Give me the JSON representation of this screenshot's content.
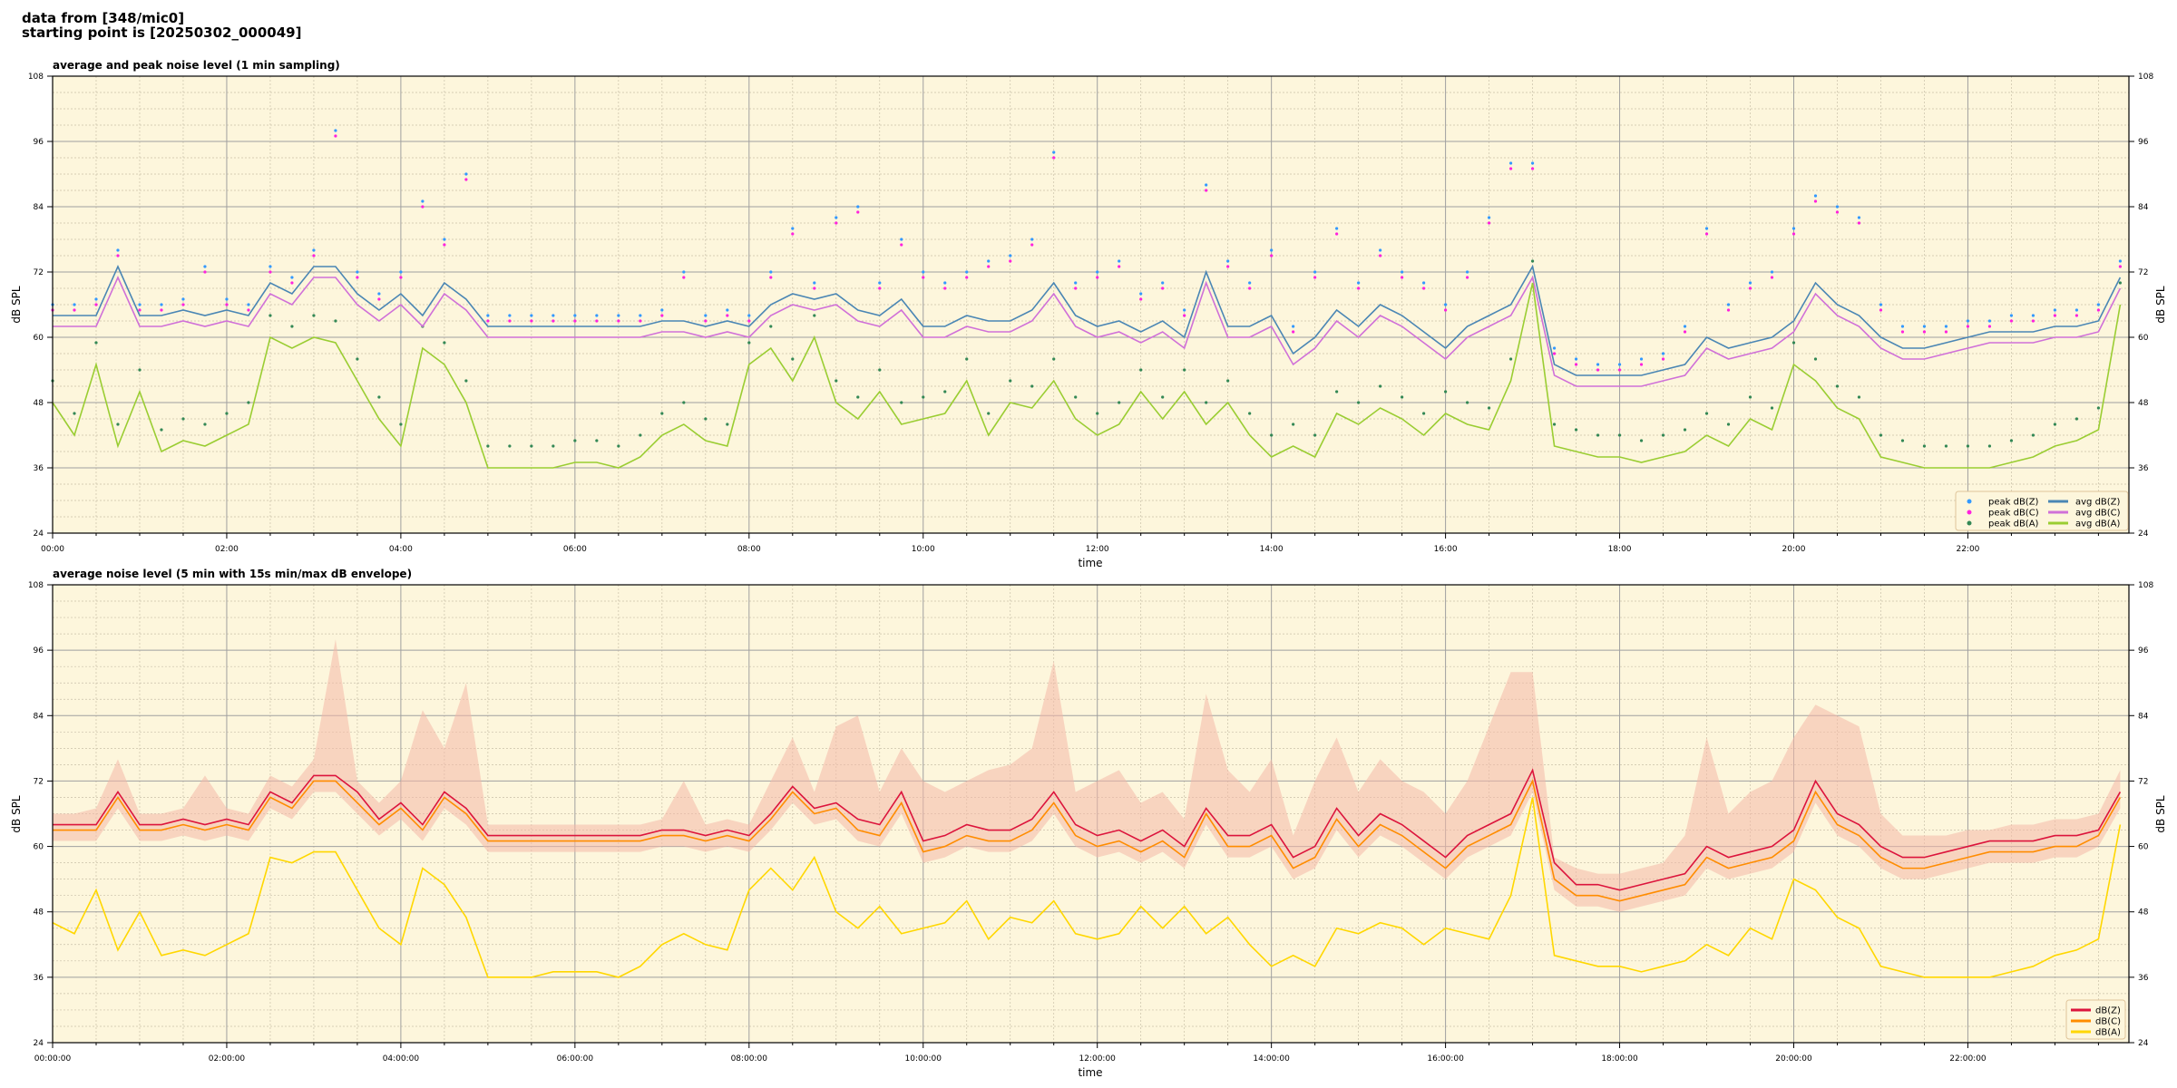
{
  "header": {
    "line1": "data from [348/mic0]",
    "line2": "starting point is [20250302_000049]"
  },
  "chart_data": [
    {
      "type": "line",
      "title": "average and peak noise level (1 min sampling)",
      "xlabel": "time",
      "ylabel": "dB SPL",
      "ylim": [
        24,
        108
      ],
      "yticks": [
        24,
        36,
        48,
        60,
        72,
        84,
        96,
        108
      ],
      "xlim_hours": [
        0,
        23.85
      ],
      "xtick_labels": [
        "00:00",
        "02:00",
        "04:00",
        "06:00",
        "08:00",
        "10:00",
        "12:00",
        "14:00",
        "16:00",
        "18:00",
        "20:00",
        "22:00"
      ],
      "x_step_minutes": 15,
      "background": "#fdf6dc",
      "grid": true,
      "legend_position": "lower-right",
      "legend_columns": 2,
      "series": [
        {
          "name": "peak dB(Z)",
          "kind": "scatter",
          "color": "#3399ff",
          "values": [
            66,
            66,
            67,
            76,
            66,
            66,
            67,
            73,
            67,
            66,
            73,
            71,
            76,
            98,
            72,
            68,
            72,
            85,
            78,
            90,
            64,
            64,
            64,
            64,
            64,
            64,
            64,
            64,
            65,
            72,
            64,
            65,
            64,
            72,
            80,
            70,
            82,
            84,
            70,
            78,
            72,
            70,
            72,
            74,
            75,
            78,
            94,
            70,
            72,
            74,
            68,
            70,
            65,
            88,
            74,
            70,
            76,
            62,
            72,
            80,
            70,
            76,
            72,
            70,
            66,
            72,
            82,
            92,
            92,
            58,
            56,
            55,
            55,
            56,
            57,
            62,
            80,
            66,
            70,
            72,
            80,
            86,
            84,
            82,
            66,
            62,
            62,
            62,
            63,
            63,
            64,
            64,
            65,
            65,
            66,
            74
          ]
        },
        {
          "name": "peak dB(C)",
          "kind": "scatter",
          "color": "#ff22dd",
          "values": [
            65,
            65,
            66,
            75,
            65,
            65,
            66,
            72,
            66,
            65,
            72,
            70,
            75,
            97,
            71,
            67,
            71,
            84,
            77,
            89,
            63,
            63,
            63,
            63,
            63,
            63,
            63,
            63,
            64,
            71,
            63,
            64,
            63,
            71,
            79,
            69,
            81,
            83,
            69,
            77,
            71,
            69,
            71,
            73,
            74,
            77,
            93,
            69,
            71,
            73,
            67,
            69,
            64,
            87,
            73,
            69,
            75,
            61,
            71,
            79,
            69,
            75,
            71,
            69,
            65,
            71,
            81,
            91,
            91,
            57,
            55,
            54,
            54,
            55,
            56,
            61,
            79,
            65,
            69,
            71,
            79,
            85,
            83,
            81,
            65,
            61,
            61,
            61,
            62,
            62,
            63,
            63,
            64,
            64,
            65,
            73
          ]
        },
        {
          "name": "peak dB(A)",
          "kind": "scatter",
          "color": "#338855",
          "values": [
            52,
            46,
            59,
            44,
            54,
            43,
            45,
            44,
            46,
            48,
            64,
            62,
            64,
            63,
            56,
            49,
            44,
            62,
            59,
            52,
            40,
            40,
            40,
            40,
            41,
            41,
            40,
            42,
            46,
            48,
            45,
            44,
            59,
            62,
            56,
            64,
            52,
            49,
            54,
            48,
            49,
            50,
            56,
            46,
            52,
            51,
            56,
            49,
            46,
            48,
            54,
            49,
            54,
            48,
            52,
            46,
            42,
            44,
            42,
            50,
            48,
            51,
            49,
            46,
            50,
            48,
            47,
            56,
            74,
            44,
            43,
            42,
            42,
            41,
            42,
            43,
            46,
            44,
            49,
            47,
            59,
            56,
            51,
            49,
            42,
            41,
            40,
            40,
            40,
            40,
            41,
            42,
            44,
            45,
            47,
            70
          ]
        },
        {
          "name": "avg dB(Z)",
          "kind": "line",
          "color": "#4a86b4",
          "values": [
            64,
            64,
            64,
            73,
            64,
            64,
            65,
            64,
            65,
            64,
            70,
            68,
            73,
            73,
            68,
            65,
            68,
            64,
            70,
            67,
            62,
            62,
            62,
            62,
            62,
            62,
            62,
            62,
            63,
            63,
            62,
            63,
            62,
            66,
            68,
            67,
            68,
            65,
            64,
            67,
            62,
            62,
            64,
            63,
            63,
            65,
            70,
            64,
            62,
            63,
            61,
            63,
            60,
            72,
            62,
            62,
            64,
            57,
            60,
            65,
            62,
            66,
            64,
            61,
            58,
            62,
            64,
            66,
            73,
            55,
            53,
            53,
            53,
            53,
            54,
            55,
            60,
            58,
            59,
            60,
            63,
            70,
            66,
            64,
            60,
            58,
            58,
            59,
            60,
            61,
            61,
            61,
            62,
            62,
            63,
            71
          ]
        },
        {
          "name": "avg dB(C)",
          "kind": "line",
          "color": "#d070d8",
          "values": [
            62,
            62,
            62,
            71,
            62,
            62,
            63,
            62,
            63,
            62,
            68,
            66,
            71,
            71,
            66,
            63,
            66,
            62,
            68,
            65,
            60,
            60,
            60,
            60,
            60,
            60,
            60,
            60,
            61,
            61,
            60,
            61,
            60,
            64,
            66,
            65,
            66,
            63,
            62,
            65,
            60,
            60,
            62,
            61,
            61,
            63,
            68,
            62,
            60,
            61,
            59,
            61,
            58,
            70,
            60,
            60,
            62,
            55,
            58,
            63,
            60,
            64,
            62,
            59,
            56,
            60,
            62,
            64,
            71,
            53,
            51,
            51,
            51,
            51,
            52,
            53,
            58,
            56,
            57,
            58,
            61,
            68,
            64,
            62,
            58,
            56,
            56,
            57,
            58,
            59,
            59,
            59,
            60,
            60,
            61,
            69
          ]
        },
        {
          "name": "avg dB(A)",
          "kind": "line",
          "color": "#9acd32",
          "values": [
            48,
            42,
            55,
            40,
            50,
            39,
            41,
            40,
            42,
            44,
            60,
            58,
            60,
            59,
            52,
            45,
            40,
            58,
            55,
            48,
            36,
            36,
            36,
            36,
            37,
            37,
            36,
            38,
            42,
            44,
            41,
            40,
            55,
            58,
            52,
            60,
            48,
            45,
            50,
            44,
            45,
            46,
            52,
            42,
            48,
            47,
            52,
            45,
            42,
            44,
            50,
            45,
            50,
            44,
            48,
            42,
            38,
            40,
            38,
            46,
            44,
            47,
            45,
            42,
            46,
            44,
            43,
            52,
            70,
            40,
            39,
            38,
            38,
            37,
            38,
            39,
            42,
            40,
            45,
            43,
            55,
            52,
            47,
            45,
            38,
            37,
            36,
            36,
            36,
            36,
            37,
            38,
            40,
            41,
            43,
            66
          ]
        }
      ]
    },
    {
      "type": "line",
      "title": "average noise level (5 min with 15s min/max dB envelope)",
      "xlabel": "time",
      "ylabel": "dB SPL",
      "ylim": [
        24,
        108
      ],
      "yticks": [
        24,
        36,
        48,
        60,
        72,
        84,
        96,
        108
      ],
      "xlim_hours": [
        0,
        23.85
      ],
      "xtick_labels": [
        "00:00:00",
        "02:00:00",
        "04:00:00",
        "06:00:00",
        "08:00:00",
        "10:00:00",
        "12:00:00",
        "14:00:00",
        "16:00:00",
        "18:00:00",
        "20:00:00",
        "22:00:00"
      ],
      "x_step_minutes": 15,
      "background": "#fdf6dc",
      "grid": true,
      "legend_position": "lower-right",
      "envelope_color": "#f4b8a8",
      "envelope_max": [
        66,
        66,
        67,
        76,
        66,
        66,
        67,
        73,
        67,
        66,
        73,
        71,
        76,
        98,
        72,
        68,
        72,
        85,
        78,
        90,
        64,
        64,
        64,
        64,
        64,
        64,
        64,
        64,
        65,
        72,
        64,
        65,
        64,
        72,
        80,
        70,
        82,
        84,
        70,
        78,
        72,
        70,
        72,
        74,
        75,
        78,
        94,
        70,
        72,
        74,
        68,
        70,
        65,
        88,
        74,
        70,
        76,
        62,
        72,
        80,
        70,
        76,
        72,
        70,
        66,
        72,
        82,
        92,
        92,
        58,
        56,
        55,
        55,
        56,
        57,
        62,
        80,
        66,
        70,
        72,
        80,
        86,
        84,
        82,
        66,
        62,
        62,
        62,
        63,
        63,
        64,
        64,
        65,
        65,
        66,
        74
      ],
      "series": [
        {
          "name": "dB(Z)",
          "kind": "line",
          "color": "#dc143c",
          "values": [
            64,
            64,
            64,
            70,
            64,
            64,
            65,
            64,
            65,
            64,
            70,
            68,
            73,
            73,
            70,
            65,
            68,
            64,
            70,
            67,
            62,
            62,
            62,
            62,
            62,
            62,
            62,
            62,
            63,
            63,
            62,
            63,
            62,
            66,
            71,
            67,
            68,
            65,
            64,
            70,
            61,
            62,
            64,
            63,
            63,
            65,
            70,
            64,
            62,
            63,
            61,
            63,
            60,
            67,
            62,
            62,
            64,
            58,
            60,
            67,
            62,
            66,
            64,
            61,
            58,
            62,
            64,
            66,
            74,
            57,
            53,
            53,
            52,
            53,
            54,
            55,
            60,
            58,
            59,
            60,
            63,
            72,
            66,
            64,
            60,
            58,
            58,
            59,
            60,
            61,
            61,
            61,
            62,
            62,
            63,
            70
          ]
        },
        {
          "name": "dB(C)",
          "kind": "line",
          "color": "#ff8c00",
          "values": [
            63,
            63,
            63,
            69,
            63,
            63,
            64,
            63,
            64,
            63,
            69,
            67,
            72,
            72,
            68,
            64,
            67,
            63,
            69,
            66,
            61,
            61,
            61,
            61,
            61,
            61,
            61,
            61,
            62,
            62,
            61,
            62,
            61,
            65,
            70,
            66,
            67,
            63,
            62,
            68,
            59,
            60,
            62,
            61,
            61,
            63,
            68,
            62,
            60,
            61,
            59,
            61,
            58,
            66,
            60,
            60,
            62,
            56,
            58,
            65,
            60,
            64,
            62,
            59,
            56,
            60,
            62,
            64,
            72,
            54,
            51,
            51,
            50,
            51,
            52,
            53,
            58,
            56,
            57,
            58,
            61,
            70,
            64,
            62,
            58,
            56,
            56,
            57,
            58,
            59,
            59,
            59,
            60,
            60,
            62,
            69
          ]
        },
        {
          "name": "dB(A)",
          "kind": "line",
          "color": "#ffd700",
          "values": [
            46,
            44,
            52,
            41,
            48,
            40,
            41,
            40,
            42,
            44,
            58,
            57,
            59,
            59,
            52,
            45,
            42,
            56,
            53,
            47,
            36,
            36,
            36,
            37,
            37,
            37,
            36,
            38,
            42,
            44,
            42,
            41,
            52,
            56,
            52,
            58,
            48,
            45,
            49,
            44,
            45,
            46,
            50,
            43,
            47,
            46,
            50,
            44,
            43,
            44,
            49,
            45,
            49,
            44,
            47,
            42,
            38,
            40,
            38,
            45,
            44,
            46,
            45,
            42,
            45,
            44,
            43,
            51,
            69,
            40,
            39,
            38,
            38,
            37,
            38,
            39,
            42,
            40,
            45,
            43,
            54,
            52,
            47,
            45,
            38,
            37,
            36,
            36,
            36,
            36,
            37,
            38,
            40,
            41,
            43,
            64
          ]
        }
      ]
    }
  ]
}
